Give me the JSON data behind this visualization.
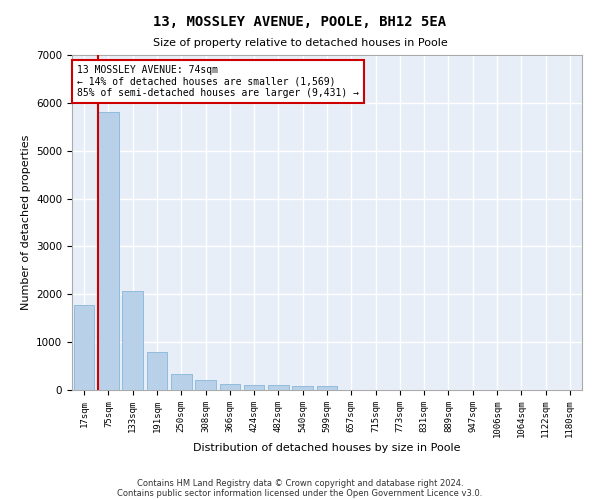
{
  "title": "13, MOSSLEY AVENUE, POOLE, BH12 5EA",
  "subtitle": "Size of property relative to detached houses in Poole",
  "xlabel": "Distribution of detached houses by size in Poole",
  "ylabel": "Number of detached properties",
  "bar_color": "#b8d0e8",
  "bar_edge_color": "#7aafd4",
  "background_color": "#e8eef8",
  "grid_color": "#ffffff",
  "annotation_box_color": "#cc0000",
  "property_line_color": "#cc0000",
  "fig_background": "#ffffff",
  "categories": [
    "17sqm",
    "75sqm",
    "133sqm",
    "191sqm",
    "250sqm",
    "308sqm",
    "366sqm",
    "424sqm",
    "482sqm",
    "540sqm",
    "599sqm",
    "657sqm",
    "715sqm",
    "773sqm",
    "831sqm",
    "889sqm",
    "947sqm",
    "1006sqm",
    "1064sqm",
    "1122sqm",
    "1180sqm"
  ],
  "values": [
    1780,
    5800,
    2060,
    800,
    340,
    200,
    120,
    110,
    100,
    80,
    80,
    0,
    0,
    0,
    0,
    0,
    0,
    0,
    0,
    0,
    0
  ],
  "property_label": "13 MOSSLEY AVENUE: 74sqm",
  "annotation_line1": "← 14% of detached houses are smaller (1,569)",
  "annotation_line2": "85% of semi-detached houses are larger (9,431) →",
  "property_bar_index": 1,
  "ylim": [
    0,
    7000
  ],
  "yticks": [
    0,
    1000,
    2000,
    3000,
    4000,
    5000,
    6000,
    7000
  ],
  "footnote1": "Contains HM Land Registry data © Crown copyright and database right 2024.",
  "footnote2": "Contains public sector information licensed under the Open Government Licence v3.0."
}
